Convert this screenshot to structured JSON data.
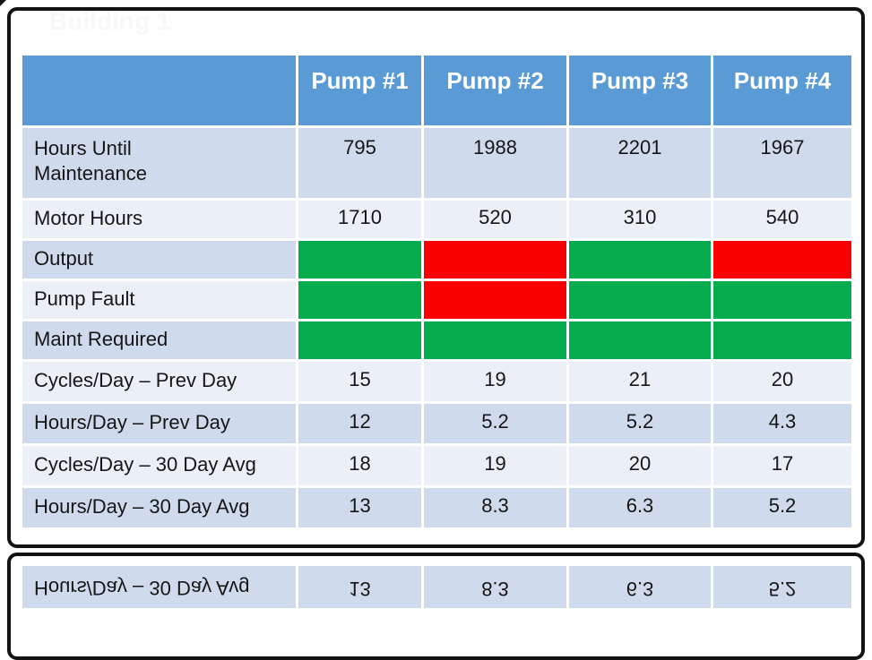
{
  "window": {
    "title": "Building 1"
  },
  "colors": {
    "header_bg": "#5B9BD5",
    "header_text": "#FFFFFF",
    "band_dark": "#CFDAEC",
    "band_light": "#EAEFF8",
    "status_green": "#04AC4E",
    "status_red": "#FB0000",
    "frame_border": "#121212",
    "body_text": "#161616",
    "title_text": "#F8F8F8"
  },
  "table": {
    "columns": [
      "",
      "Pump #1",
      "Pump #2",
      "Pump #3",
      "Pump #4"
    ],
    "rows": [
      {
        "label": "Hours Until\nMaintenance",
        "values": [
          "795",
          "1988",
          "2201",
          "1967"
        ]
      },
      {
        "label": "Motor Hours",
        "values": [
          "1710",
          "520",
          "310",
          "540"
        ]
      },
      {
        "label": "Output",
        "statuses": [
          "green",
          "red",
          "green",
          "red"
        ]
      },
      {
        "label": "Pump Fault",
        "statuses": [
          "green",
          "red",
          "green",
          "green"
        ]
      },
      {
        "label": "Maint Required",
        "statuses": [
          "green",
          "green",
          "green",
          "green"
        ]
      },
      {
        "label": "Cycles/Day – Prev Day",
        "values": [
          "15",
          "19",
          "21",
          "20"
        ]
      },
      {
        "label": "Hours/Day – Prev Day",
        "values": [
          "12",
          "5.2",
          "5.2",
          "4.3"
        ]
      },
      {
        "label": "Cycles/Day – 30 Day Avg",
        "values": [
          "18",
          "19",
          "20",
          "17"
        ]
      },
      {
        "label": "Hours/Day – 30 Day Avg",
        "values": [
          "13",
          "8.3",
          "6.3",
          "5.2"
        ]
      }
    ]
  },
  "reflection_row": {
    "label": "Hours/Day – 30 Day Avg",
    "values": [
      "13",
      "8.3",
      "6.3",
      "5.2"
    ]
  }
}
